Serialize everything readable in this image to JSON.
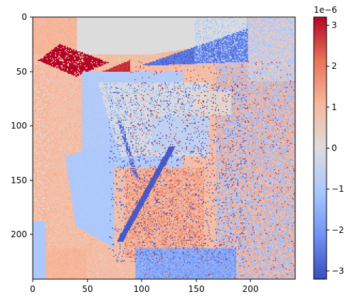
{
  "chart_data": {
    "type": "heatmap",
    "title": "",
    "xlabel": "",
    "ylabel": "",
    "grid": false,
    "image_shape": [
      245,
      245
    ],
    "xlim": [
      0,
      245
    ],
    "ylim": [
      245,
      0
    ],
    "x_ticks": [
      0,
      50,
      100,
      150,
      200
    ],
    "y_ticks": [
      0,
      50,
      100,
      150,
      200
    ],
    "x_tick_labels": [
      "0",
      "50",
      "100",
      "150",
      "200"
    ],
    "y_tick_labels": [
      "0",
      "50",
      "100",
      "150",
      "200"
    ],
    "colormap": "coolwarm",
    "colormap_stops": [
      "#3b4cc0",
      "#6f92f3",
      "#aac7fd",
      "#dddcdc",
      "#f7b89c",
      "#e7745b",
      "#b40426"
    ],
    "colorbar": {
      "range": [
        -3.2,
        3.2
      ],
      "ticks": [
        3,
        2,
        1,
        0,
        -1,
        -2,
        -3
      ],
      "tick_labels": [
        "3",
        "2",
        "1",
        "0",
        "−1",
        "−2",
        "−3"
      ],
      "offset_label": "1e−6"
    },
    "value_unit_multiplier": 1e-06,
    "value_description_regions": [
      {
        "region": "top-left band",
        "value": 1.2
      },
      {
        "region": "top grey band",
        "value": 0.0
      },
      {
        "region": "top-left red wedge",
        "value": 3.2
      },
      {
        "region": "top-center red wedge",
        "value": 2.8
      },
      {
        "region": "top-right blue triangle",
        "value": -2.8
      },
      {
        "region": "left-center light blue block",
        "value": -1.0
      },
      {
        "region": "center grey block",
        "value": 0.0
      },
      {
        "region": "left-lower light blue slab",
        "value": -1.0
      },
      {
        "region": "left edge salmon",
        "value": 1.0
      },
      {
        "region": "bottom-left salmon strip",
        "value": 1.0
      },
      {
        "region": "right side mixed",
        "value": 0.3
      },
      {
        "region": "center dark blue streaks",
        "value": -3.0
      },
      {
        "region": "center lower salmon block",
        "value": 1.5
      },
      {
        "region": "bottom center blue band",
        "value": -1.8
      }
    ]
  }
}
